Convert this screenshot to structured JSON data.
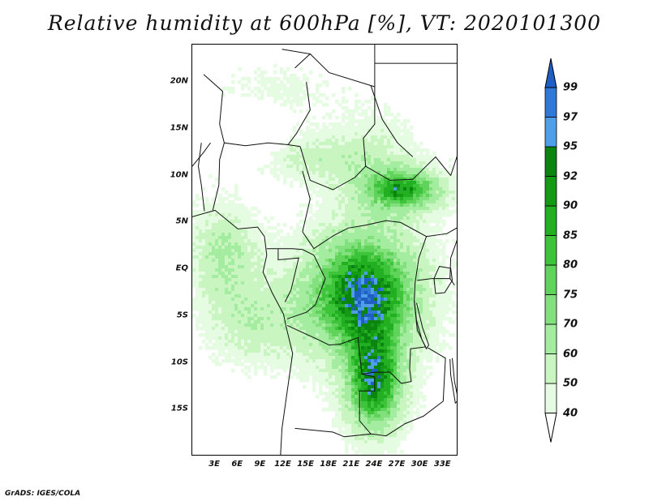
{
  "title": "Relative humidity at 600hPa [%], VT: 2020101300",
  "footer": "GrADS: IGES/COLA",
  "map": {
    "lon_range": [
      0,
      35
    ],
    "lat_range": [
      -20,
      24
    ],
    "lat_ticks": [
      {
        "label": "20N",
        "value": 20
      },
      {
        "label": "15N",
        "value": 15
      },
      {
        "label": "10N",
        "value": 10
      },
      {
        "label": "5N",
        "value": 5
      },
      {
        "label": "EQ",
        "value": 0
      },
      {
        "label": "5S",
        "value": -5
      },
      {
        "label": "10S",
        "value": -10
      },
      {
        "label": "15S",
        "value": -15
      }
    ],
    "lon_ticks": [
      {
        "label": "3E",
        "value": 3
      },
      {
        "label": "6E",
        "value": 6
      },
      {
        "label": "9E",
        "value": 9
      },
      {
        "label": "12E",
        "value": 12
      },
      {
        "label": "15E",
        "value": 15
      },
      {
        "label": "18E",
        "value": 18
      },
      {
        "label": "21E",
        "value": 21
      },
      {
        "label": "24E",
        "value": 24
      },
      {
        "label": "27E",
        "value": 27
      },
      {
        "label": "30E",
        "value": 30
      },
      {
        "label": "33E",
        "value": 33
      }
    ]
  },
  "colorbar": {
    "levels": [
      "40",
      "50",
      "60",
      "70",
      "75",
      "80",
      "85",
      "90",
      "92",
      "95",
      "97",
      "99"
    ],
    "colors": [
      "#ffffff",
      "#e6fce2",
      "#c8f5c0",
      "#a4eda0",
      "#82e17c",
      "#5fd35a",
      "#3dc43a",
      "#22b022",
      "#149a14",
      "#0b8410",
      "#4f9ee8",
      "#2f78d8",
      "#1f5fc4"
    ]
  }
}
